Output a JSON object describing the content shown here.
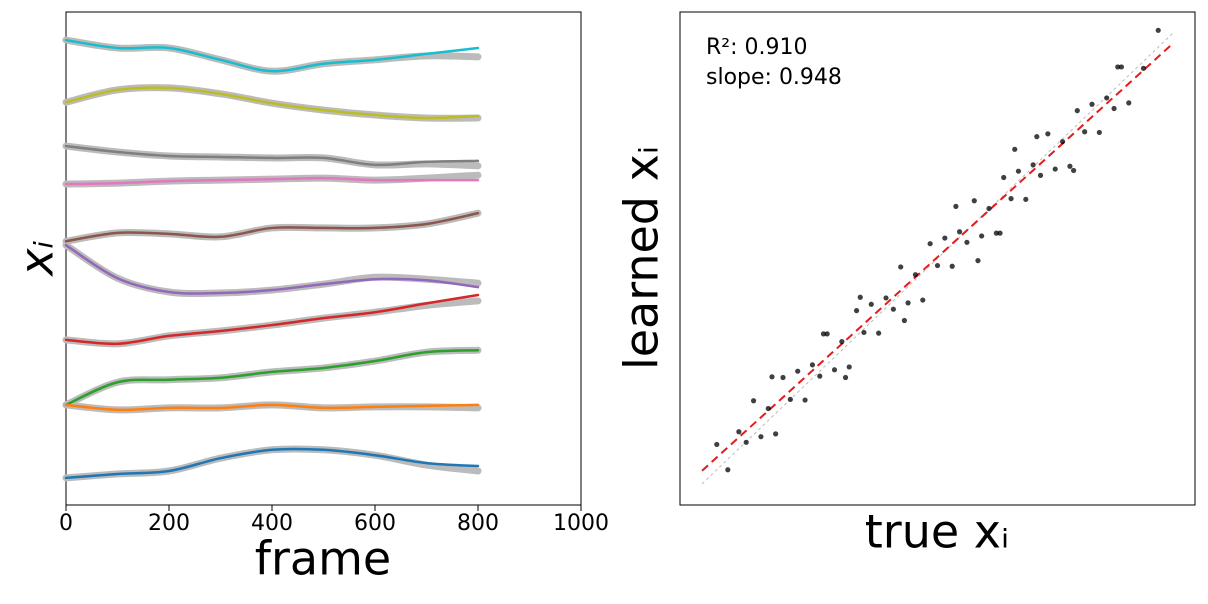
{
  "chart_data": [
    {
      "type": "line",
      "xlabel": "frame",
      "ylabel": "xᵢ",
      "xlim": [
        0,
        1000
      ],
      "xticks": [
        0,
        200,
        400,
        600,
        800,
        1000
      ],
      "ylim": [
        0,
        100
      ],
      "x": [
        0,
        100,
        200,
        300,
        400,
        500,
        600,
        700,
        800
      ],
      "series": [
        {
          "color": "#bbbbbb",
          "linewidth": 7,
          "values": [
            94.3,
            92.7,
            92.7,
            90.3,
            88.0,
            89.5,
            90.3,
            91.1,
            90.9
          ]
        },
        {
          "color": "#bbbbbb",
          "linewidth": 7,
          "values": [
            81.7,
            84.2,
            84.6,
            83.4,
            81.5,
            80.1,
            79.1,
            78.5,
            78.5
          ]
        },
        {
          "color": "#bbbbbb",
          "linewidth": 7,
          "values": [
            72.8,
            71.6,
            70.8,
            70.6,
            70.4,
            70.4,
            69.0,
            69.2,
            68.8
          ]
        },
        {
          "color": "#bbbbbb",
          "linewidth": 7,
          "values": [
            65.1,
            65.3,
            65.7,
            65.9,
            66.1,
            66.3,
            65.9,
            66.3,
            66.9
          ]
        },
        {
          "color": "#bbbbbb",
          "linewidth": 7,
          "values": [
            53.5,
            55.2,
            55.0,
            54.4,
            56.2,
            56.2,
            56.2,
            57.0,
            59.2
          ]
        },
        {
          "color": "#bbbbbb",
          "linewidth": 7,
          "values": [
            52.7,
            46.0,
            43.2,
            43.0,
            43.6,
            44.8,
            46.2,
            45.8,
            45.0
          ]
        },
        {
          "color": "#bbbbbb",
          "linewidth": 7,
          "values": [
            33.5,
            32.7,
            34.3,
            35.3,
            36.5,
            37.9,
            39.1,
            40.5,
            41.4
          ]
        },
        {
          "color": "#bbbbbb",
          "linewidth": 7,
          "values": [
            20.3,
            24.9,
            25.4,
            25.8,
            27.0,
            27.8,
            29.2,
            31.0,
            31.4
          ]
        },
        {
          "color": "#bbbbbb",
          "linewidth": 7,
          "values": [
            20.3,
            19.3,
            19.7,
            19.7,
            20.3,
            19.7,
            19.9,
            19.9,
            19.7
          ]
        },
        {
          "color": "#bbbbbb",
          "linewidth": 7,
          "values": [
            5.5,
            6.3,
            6.9,
            9.5,
            11.2,
            11.2,
            10.1,
            8.1,
            6.9
          ]
        },
        {
          "color": "#17becf",
          "linewidth": 2.5,
          "values": [
            94.3,
            92.7,
            92.7,
            90.3,
            88.0,
            89.5,
            90.3,
            91.5,
            92.7
          ]
        },
        {
          "color": "#bcbd22",
          "linewidth": 2.5,
          "values": [
            81.7,
            84.2,
            84.6,
            83.4,
            81.5,
            80.1,
            79.1,
            78.5,
            78.9
          ]
        },
        {
          "color": "#7f7f7f",
          "linewidth": 2.5,
          "values": [
            72.8,
            71.6,
            70.8,
            70.6,
            70.4,
            70.4,
            69.0,
            69.6,
            69.8
          ]
        },
        {
          "color": "#e377c2",
          "linewidth": 2.5,
          "values": [
            65.1,
            65.3,
            65.7,
            65.9,
            66.1,
            66.3,
            65.9,
            65.9,
            65.9
          ]
        },
        {
          "color": "#8c564b",
          "linewidth": 2.5,
          "values": [
            53.5,
            55.2,
            55.0,
            54.4,
            56.2,
            56.2,
            56.2,
            57.0,
            59.2
          ]
        },
        {
          "color": "#9467bd",
          "linewidth": 2.5,
          "values": [
            52.7,
            46.0,
            43.2,
            43.0,
            43.6,
            44.8,
            45.8,
            45.6,
            44.2
          ]
        },
        {
          "color": "#d62728",
          "linewidth": 2.5,
          "values": [
            33.5,
            32.7,
            34.3,
            35.3,
            36.5,
            37.9,
            39.1,
            40.9,
            42.6
          ]
        },
        {
          "color": "#2ca02c",
          "linewidth": 2.5,
          "values": [
            20.3,
            24.9,
            25.4,
            25.8,
            27.0,
            27.8,
            29.2,
            31.0,
            31.4
          ]
        },
        {
          "color": "#ff7f0e",
          "linewidth": 2.5,
          "values": [
            20.3,
            19.3,
            19.7,
            19.7,
            20.3,
            19.7,
            19.9,
            20.1,
            20.3
          ]
        },
        {
          "color": "#1f77b4",
          "linewidth": 2.5,
          "values": [
            5.5,
            6.3,
            6.9,
            9.5,
            11.2,
            11.2,
            10.1,
            8.5,
            7.9
          ]
        }
      ]
    },
    {
      "type": "scatter",
      "xlabel": "true xᵢ",
      "ylabel": "learned xᵢ",
      "annotations": [
        "R²: 0.910",
        "slope: 0.948"
      ],
      "xlim": [
        -3.5,
        3.5
      ],
      "ylim": [
        -3.5,
        3.5
      ],
      "color": "#000000",
      "x": [
        -3.0,
        -2.85,
        -2.7,
        -2.6,
        -2.5,
        -2.4,
        -2.3,
        -2.2,
        -2.1,
        -2.0,
        -1.9,
        -1.8,
        -1.7,
        -1.6,
        -1.5,
        -1.4,
        -1.3,
        -1.2,
        -1.1,
        -1.0,
        -0.9,
        -0.8,
        -0.7,
        -0.6,
        -0.5,
        -0.4,
        -0.3,
        -0.2,
        -0.1,
        0.0,
        0.1,
        0.2,
        0.3,
        0.4,
        0.5,
        0.6,
        0.7,
        0.8,
        0.9,
        1.0,
        1.1,
        1.2,
        1.3,
        1.4,
        1.5,
        1.6,
        1.7,
        1.8,
        1.9,
        2.0,
        2.1,
        2.2,
        2.3,
        2.4,
        2.5,
        2.6,
        2.8,
        3.0,
        -1.55,
        -1.05,
        -0.45,
        0.25,
        0.85,
        1.35,
        1.85,
        2.45,
        -2.25,
        -1.25,
        1.05,
        0.55
      ],
      "values": [
        -2.64,
        -3.0,
        -2.46,
        -2.61,
        -2.02,
        -2.53,
        -2.13,
        -2.49,
        -1.69,
        -2.0,
        -1.6,
        -2.01,
        -1.51,
        -1.67,
        -1.07,
        -1.58,
        -1.18,
        -1.54,
        -0.74,
        -1.05,
        -0.65,
        -1.06,
        -0.56,
        -0.72,
        -0.12,
        -0.63,
        -0.23,
        -0.59,
        0.21,
        -0.1,
        0.29,
        -0.11,
        0.38,
        0.23,
        0.82,
        0.32,
        0.71,
        0.36,
        1.15,
        0.85,
        1.24,
        0.84,
        1.33,
        1.18,
        1.77,
        1.27,
        1.66,
        1.31,
        2.1,
        1.8,
        2.19,
        1.79,
        2.28,
        2.13,
        2.72,
        2.21,
        2.7,
        3.24,
        -1.07,
        -0.55,
        -0.88,
        0.74,
        0.36,
        1.73,
        1.25,
        2.72,
        -1.68,
        -1.69,
        1.55,
        -0.03
      ],
      "line_xlim": [
        -3.2,
        3.2
      ],
      "lines": [
        {
          "slope": 1,
          "intercept": 0,
          "color": "#bbbbbb",
          "dash": "dotted"
        },
        {
          "slope": 0.948,
          "intercept": 0.02,
          "color": "#e41a1c",
          "dash": "dashed"
        }
      ]
    }
  ]
}
